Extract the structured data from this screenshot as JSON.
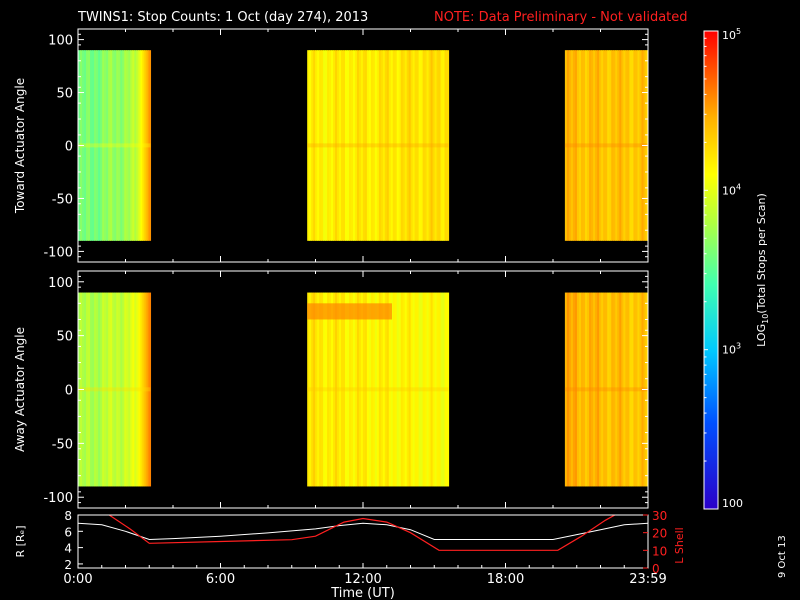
{
  "title": {
    "main": "TWINS1: Stop Counts:  1 Oct (day 274), 2013",
    "note": "NOTE: Data Preliminary - Not validated",
    "note_color": "#ff2020"
  },
  "side_date": "9 Oct 13",
  "chart_data": [
    {
      "type": "heatmap",
      "title": "",
      "ylabel": "Toward Actuator Angle",
      "ylim": [
        -110,
        110
      ],
      "yticks": [
        "100",
        "50",
        "0",
        "-50",
        "-100"
      ],
      "xlim": [
        0,
        24
      ],
      "segments": [
        {
          "start": 0.0,
          "end": 3.05,
          "level_start": 3.55,
          "level_end": 3.85,
          "edge_level": 4.55
        },
        {
          "start": 9.65,
          "end": 15.6,
          "level_start": 4.15,
          "level_end": 4.25,
          "edge_level": 4.3
        },
        {
          "start": 20.5,
          "end": 23.98,
          "level_start": 4.4,
          "level_end": 4.35,
          "edge_level": 4.35
        }
      ]
    },
    {
      "type": "heatmap",
      "title": "",
      "ylabel": "Away Actuator Angle",
      "ylim": [
        -110,
        110
      ],
      "yticks": [
        "100",
        "50",
        "0",
        "-50",
        "-100"
      ],
      "xlim": [
        0,
        24
      ],
      "segments": [
        {
          "start": 0.0,
          "end": 3.05,
          "level_start": 3.75,
          "level_end": 4.0,
          "edge_level": 4.6
        },
        {
          "start": 9.65,
          "end": 15.6,
          "level_start": 4.2,
          "level_end": 4.1,
          "edge_level": 4.3
        },
        {
          "start": 20.5,
          "end": 23.98,
          "level_start": 4.45,
          "level_end": 4.35,
          "edge_level": 4.35
        }
      ]
    },
    {
      "type": "line",
      "title": "",
      "xlabel": "Time (UT)",
      "xlim": [
        0,
        24
      ],
      "xticks": [
        "0:00",
        "6:00",
        "12:00",
        "18:00",
        "23:59"
      ],
      "y_left": {
        "label": "R [Rₑ]",
        "ylim": [
          1.5,
          8
        ],
        "ticks": [
          "8",
          "6",
          "4",
          "2"
        ]
      },
      "y_right": {
        "label": "L Shell",
        "ylim": [
          0,
          30
        ],
        "ticks": [
          "30",
          "20",
          "10",
          "0"
        ],
        "color": "#ff2020"
      },
      "series": [
        {
          "x": [
            0,
            1,
            2,
            3,
            4,
            6,
            8,
            10,
            11,
            12,
            13,
            14,
            15,
            16,
            18,
            20,
            21,
            22,
            23,
            24
          ],
          "y": [
            7.0,
            6.8,
            6.0,
            5.0,
            5.1,
            5.4,
            5.8,
            6.3,
            6.7,
            7.0,
            6.8,
            6.2,
            5.0,
            5.0,
            5.0,
            5.0,
            5.6,
            6.2,
            6.8,
            7.0
          ]
        },
        {
          "x": [
            0,
            1.2,
            2.2,
            3.0,
            6,
            9,
            10,
            11.2,
            12,
            13,
            14,
            15.2,
            17,
            19,
            20.2,
            21.2,
            22.2,
            23.0
          ],
          "y": [
            30,
            31,
            22,
            14,
            15,
            16,
            18,
            26,
            28,
            26,
            20,
            10,
            10,
            10,
            10,
            18,
            27,
            33
          ]
        }
      ]
    }
  ],
  "colorbar": {
    "label": "LOG",
    "label_sub": "10",
    "label_rest": "(Total Stops per Scan)",
    "ticks": [
      {
        "base": "10",
        "exp": "5",
        "level": 5
      },
      {
        "base": "10",
        "exp": "4",
        "level": 4
      },
      {
        "base": "10",
        "exp": "3",
        "level": 3
      },
      {
        "base": "100",
        "exp": "",
        "level": 2
      }
    ],
    "range": [
      2,
      5
    ]
  }
}
